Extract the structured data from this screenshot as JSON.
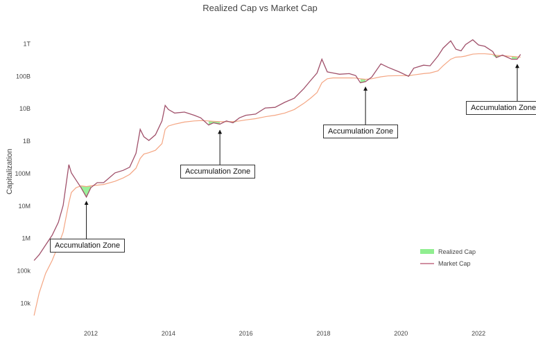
{
  "chart_data": {
    "type": "line",
    "title": "Realized Cap vs Market Cap",
    "xlabel": "",
    "ylabel": "Capitalization",
    "yscale": "log",
    "xlim": [
      "2010-07-01",
      "2023-03-01"
    ],
    "ylim": [
      3000,
      3000000000000
    ],
    "ytick_values": [
      10000,
      100000,
      1000000,
      10000000,
      100000000,
      1000000000,
      10000000000,
      100000000000,
      1000000000000
    ],
    "yticks": [
      "10k",
      "100k",
      "1M",
      "10M",
      "100M",
      "1B",
      "10B",
      "100B",
      "1T"
    ],
    "xtick_values": [
      "2012-01-01",
      "2014-01-01",
      "2016-01-01",
      "2018-01-01",
      "2020-01-01",
      "2022-01-01"
    ],
    "xticks": [
      "2012",
      "2014",
      "2016",
      "2018",
      "2020",
      "2022"
    ],
    "legend_position": "bottom-right",
    "legend": [
      {
        "label": "Realized Cap",
        "style": "fill",
        "color": "#90ee90"
      },
      {
        "label": "Market Cap",
        "style": "line",
        "color": "#c06c84"
      }
    ],
    "colors": {
      "market_cap": "#a0506a",
      "realized_cap": "#f4a582",
      "accumulation_fill": "#90ee90"
    },
    "series": [
      {
        "name": "Market Cap",
        "x": [
          "2010-07-15",
          "2010-09-01",
          "2010-11-01",
          "2011-01-01",
          "2011-03-01",
          "2011-04-15",
          "2011-06-08",
          "2011-07-01",
          "2011-08-15",
          "2011-10-01",
          "2011-11-20",
          "2012-01-01",
          "2012-03-01",
          "2012-05-01",
          "2012-08-15",
          "2012-11-01",
          "2013-01-01",
          "2013-03-01",
          "2013-04-10",
          "2013-05-15",
          "2013-07-01",
          "2013-09-01",
          "2013-11-01",
          "2013-12-01",
          "2014-01-01",
          "2014-03-01",
          "2014-06-01",
          "2014-09-01",
          "2014-11-01",
          "2015-01-15",
          "2015-03-01",
          "2015-05-01",
          "2015-07-01",
          "2015-09-01",
          "2015-11-01",
          "2016-01-01",
          "2016-04-01",
          "2016-07-01",
          "2016-10-01",
          "2017-01-01",
          "2017-04-01",
          "2017-07-01",
          "2017-09-01",
          "2017-11-01",
          "2017-12-17",
          "2018-02-06",
          "2018-04-01",
          "2018-06-01",
          "2018-09-01",
          "2018-11-01",
          "2018-12-15",
          "2019-02-01",
          "2019-04-01",
          "2019-06-26",
          "2019-09-01",
          "2019-12-15",
          "2020-03-13",
          "2020-05-01",
          "2020-08-01",
          "2020-10-01",
          "2020-12-15",
          "2021-02-01",
          "2021-04-14",
          "2021-06-01",
          "2021-07-20",
          "2021-09-01",
          "2021-11-08",
          "2022-01-01",
          "2022-03-01",
          "2022-05-15",
          "2022-06-18",
          "2022-08-15",
          "2022-11-10",
          "2022-12-31",
          "2023-02-01"
        ],
        "values": [
          200000,
          300000,
          600000,
          1200000,
          3000000,
          10000000,
          180000000,
          100000000,
          60000000,
          35000000,
          18000000,
          35000000,
          50000000,
          50000000,
          100000000,
          120000000,
          150000000,
          400000000,
          2200000000,
          1300000000,
          1000000000,
          1500000000,
          4000000000,
          12000000000,
          9000000000,
          7000000000,
          7500000000,
          6000000000,
          5000000000,
          3000000000,
          3500000000,
          3200000000,
          4000000000,
          3500000000,
          5000000000,
          6000000000,
          6500000000,
          10000000000,
          10500000000,
          15000000000,
          20000000000,
          40000000000,
          70000000000,
          120000000000,
          320000000000,
          130000000000,
          120000000000,
          110000000000,
          115000000000,
          100000000000,
          60000000000,
          65000000000,
          90000000000,
          230000000000,
          180000000000,
          130000000000,
          95000000000,
          170000000000,
          210000000000,
          200000000000,
          400000000000,
          700000000000,
          1180000000000,
          650000000000,
          580000000000,
          900000000000,
          1270000000000,
          880000000000,
          800000000000,
          550000000000,
          360000000000,
          430000000000,
          320000000000,
          320000000000,
          450000000000
        ]
      },
      {
        "name": "Realized Cap",
        "x": [
          "2010-07-15",
          "2010-09-01",
          "2010-11-01",
          "2011-01-01",
          "2011-03-01",
          "2011-04-15",
          "2011-06-08",
          "2011-07-01",
          "2011-08-15",
          "2011-10-01",
          "2011-11-20",
          "2012-01-01",
          "2012-03-01",
          "2012-05-01",
          "2012-08-15",
          "2012-11-01",
          "2013-01-01",
          "2013-03-01",
          "2013-04-10",
          "2013-05-15",
          "2013-07-01",
          "2013-09-01",
          "2013-11-01",
          "2013-12-01",
          "2014-01-01",
          "2014-03-01",
          "2014-06-01",
          "2014-09-01",
          "2014-11-01",
          "2015-01-15",
          "2015-03-01",
          "2015-05-01",
          "2015-07-01",
          "2015-09-01",
          "2015-11-01",
          "2016-01-01",
          "2016-04-01",
          "2016-07-01",
          "2016-10-01",
          "2017-01-01",
          "2017-04-01",
          "2017-07-01",
          "2017-09-01",
          "2017-11-01",
          "2017-12-17",
          "2018-02-06",
          "2018-04-01",
          "2018-06-01",
          "2018-09-01",
          "2018-11-01",
          "2018-12-15",
          "2019-02-01",
          "2019-04-01",
          "2019-06-26",
          "2019-09-01",
          "2019-12-15",
          "2020-03-13",
          "2020-05-01",
          "2020-08-01",
          "2020-10-01",
          "2020-12-15",
          "2021-02-01",
          "2021-04-14",
          "2021-06-01",
          "2021-07-20",
          "2021-09-01",
          "2021-11-08",
          "2022-01-01",
          "2022-03-01",
          "2022-05-15",
          "2022-06-18",
          "2022-08-15",
          "2022-11-10",
          "2022-12-31",
          "2023-02-01"
        ],
        "values": [
          4000,
          20000,
          80000,
          200000,
          600000,
          1500000,
          12000000,
          25000000,
          35000000,
          40000000,
          38000000,
          40000000,
          42000000,
          44000000,
          55000000,
          70000000,
          90000000,
          140000000,
          280000000,
          380000000,
          420000000,
          500000000,
          800000000,
          2200000000,
          2800000000,
          3200000000,
          3700000000,
          4000000000,
          4100000000,
          4000000000,
          3900000000,
          3800000000,
          3800000000,
          3800000000,
          4000000000,
          4300000000,
          4700000000,
          5400000000,
          6000000000,
          7000000000,
          9000000000,
          14000000000,
          20000000000,
          30000000000,
          60000000000,
          80000000000,
          85000000000,
          85000000000,
          85000000000,
          84000000000,
          80000000000,
          77000000000,
          80000000000,
          92000000000,
          98000000000,
          100000000000,
          100000000000,
          105000000000,
          115000000000,
          120000000000,
          140000000000,
          200000000000,
          320000000000,
          370000000000,
          380000000000,
          400000000000,
          460000000000,
          470000000000,
          470000000000,
          450000000000,
          420000000000,
          410000000000,
          390000000000,
          380000000000,
          370000000000
        ]
      }
    ],
    "annotations": [
      {
        "text": "Accumulation Zone",
        "arrow_to": {
          "x": "2011-11-20",
          "y": 18000000
        }
      },
      {
        "text": "Accumulation Zone",
        "arrow_to": {
          "x": "2015-05-01",
          "y": 2800000000
        }
      },
      {
        "text": "Accumulation Zone",
        "arrow_to": {
          "x": "2019-02-01",
          "y": 60000000000
        }
      },
      {
        "text": "Accumulation Zone",
        "arrow_to": {
          "x": "2023-01-01",
          "y": 300000000000
        }
      }
    ]
  }
}
